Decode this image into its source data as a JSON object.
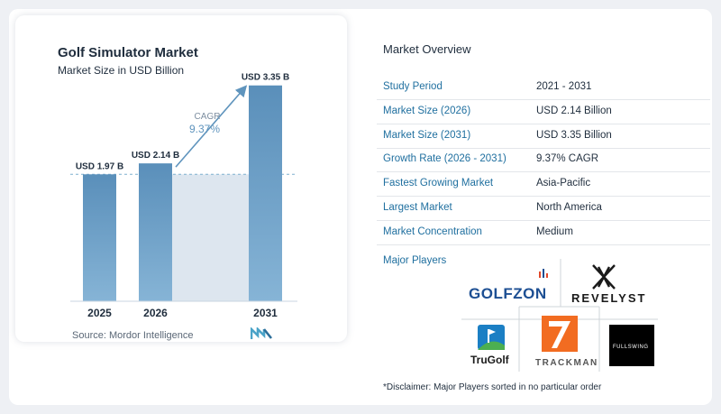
{
  "chart_data": {
    "type": "bar",
    "title": "Golf Simulator Market",
    "subtitle": "Market Size in USD Billion",
    "categories": [
      "2025",
      "2026",
      "2031"
    ],
    "values": [
      1.97,
      2.14,
      3.35
    ],
    "data_labels": [
      "USD 1.97 B",
      "USD 2.14 B",
      "USD 3.35 B"
    ],
    "annotation": {
      "label": "CAGR",
      "value": "9.37%"
    },
    "bar_color": "#5f94bd",
    "ylim": [
      0,
      3.5
    ]
  },
  "source": "Source: Mordor Intelligence",
  "overview": {
    "title": "Market Overview",
    "rows": [
      {
        "key": "Study Period",
        "value": "2021 - 2031"
      },
      {
        "key": "Market Size (2026)",
        "value": "USD 2.14 Billion"
      },
      {
        "key": "Market Size (2031)",
        "value": "USD 3.35 Billion"
      },
      {
        "key": "Growth Rate (2026 - 2031)",
        "value": "9.37% CAGR"
      },
      {
        "key": "Fastest Growing Market",
        "value": "Asia-Pacific"
      },
      {
        "key": "Largest Market",
        "value": "North America"
      },
      {
        "key": "Market Concentration",
        "value": "Medium"
      }
    ]
  },
  "players": {
    "title": "Major Players",
    "logos": [
      "GOLFZON",
      "REVELYST",
      "TruGolf",
      "TRACKMAN",
      "FULLSWING"
    ]
  },
  "disclaimer": "*Disclaimer: Major Players sorted in no particular order",
  "colors": {
    "accent": "#1f6f9f",
    "bar": "#5f94bd",
    "shade": "#dde6ef"
  }
}
